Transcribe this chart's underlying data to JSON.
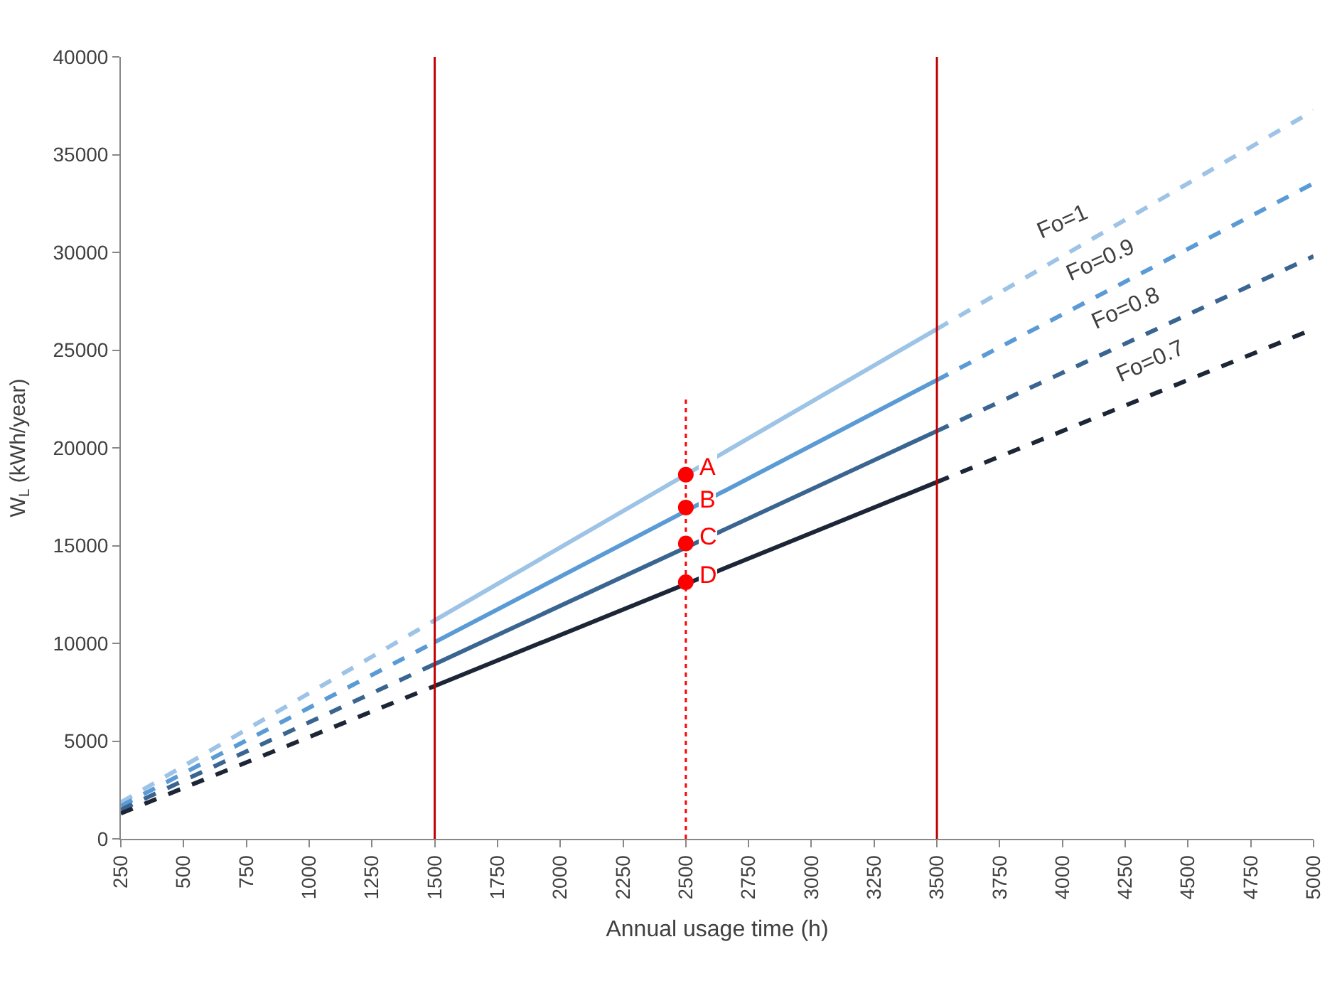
{
  "chart_data": {
    "type": "line",
    "xlabel": "Annual usage time (h)",
    "ylabel": "W$_{L}$ (kWh/year)",
    "xlim": [
      250,
      5000
    ],
    "xticks": [
      250,
      500,
      750,
      1000,
      1250,
      1500,
      1750,
      2000,
      2250,
      2500,
      2750,
      3000,
      3250,
      3500,
      3750,
      4000,
      4250,
      4500,
      4750,
      5000
    ],
    "ylim": [
      0,
      40000
    ],
    "yticks": [
      0,
      5000,
      10000,
      15000,
      20000,
      25000,
      30000,
      35000,
      40000
    ],
    "grid": false,
    "marker": "none",
    "series": [
      {
        "color": "#9dc3e6",
        "line_style": "dashed",
        "x": [
          250,
          1500
        ],
        "values": [
          1860,
          11180
        ]
      },
      {
        "color": "#9dc3e6",
        "line_style": "solid",
        "x": [
          1500,
          3500
        ],
        "values": [
          11180,
          26080
        ]
      },
      {
        "color": "#9dc3e6",
        "line_style": "dashed",
        "x": [
          3500,
          5000
        ],
        "values": [
          26080,
          37250
        ]
      },
      {
        "color": "#5b9bd5",
        "line_style": "dashed",
        "x": [
          250,
          1500
        ],
        "values": [
          1680,
          10060
        ]
      },
      {
        "color": "#5b9bd5",
        "line_style": "solid",
        "x": [
          1500,
          3500
        ],
        "values": [
          10060,
          23470
        ]
      },
      {
        "color": "#5b9bd5",
        "line_style": "dashed",
        "x": [
          3500,
          5000
        ],
        "values": [
          23470,
          33530
        ]
      },
      {
        "color": "#3a6591",
        "line_style": "dashed",
        "x": [
          250,
          1500
        ],
        "values": [
          1490,
          8940
        ]
      },
      {
        "color": "#3a6591",
        "line_style": "solid",
        "x": [
          1500,
          3500
        ],
        "values": [
          8940,
          20860
        ]
      },
      {
        "color": "#3a6591",
        "line_style": "dashed",
        "x": [
          3500,
          5000
        ],
        "values": [
          20860,
          29800
        ]
      },
      {
        "color": "#1c2636",
        "line_style": "dashed",
        "x": [
          250,
          1500
        ],
        "values": [
          1300,
          7820
        ]
      },
      {
        "color": "#1c2636",
        "line_style": "solid",
        "x": [
          1500,
          3500
        ],
        "values": [
          7820,
          18250
        ]
      },
      {
        "color": "#1c2636",
        "line_style": "dashed",
        "x": [
          3500,
          5000
        ],
        "values": [
          18250,
          26080
        ]
      },
      {
        "color": "#ff0000",
        "line_style": "dotted",
        "x": [
          2500,
          2500
        ],
        "values": [
          0,
          22670
        ]
      },
      {
        "type": "scatter",
        "color": "#ff0000",
        "marker": "circle",
        "x": [
          2500,
          2500,
          2500,
          2500
        ],
        "values": [
          18630,
          16950,
          15110,
          13130
        ],
        "value_labels": [
          "A",
          "B",
          "C",
          "D"
        ]
      }
    ],
    "annotations": [
      {
        "text": "Fo=1",
        "x": 4000,
        "y": 29800
      },
      {
        "text": "Fo=0.9",
        "x": 4150,
        "y": 27830
      },
      {
        "text": "Fo=0.8",
        "x": 4250,
        "y": 25330
      },
      {
        "text": "Fo=0.7",
        "x": 4350,
        "y": 22690
      }
    ],
    "ref_lines": [
      {
        "axis": "x",
        "value": 1500,
        "color": "#c00000"
      },
      {
        "axis": "x",
        "value": 3500,
        "color": "#c00000"
      }
    ]
  }
}
